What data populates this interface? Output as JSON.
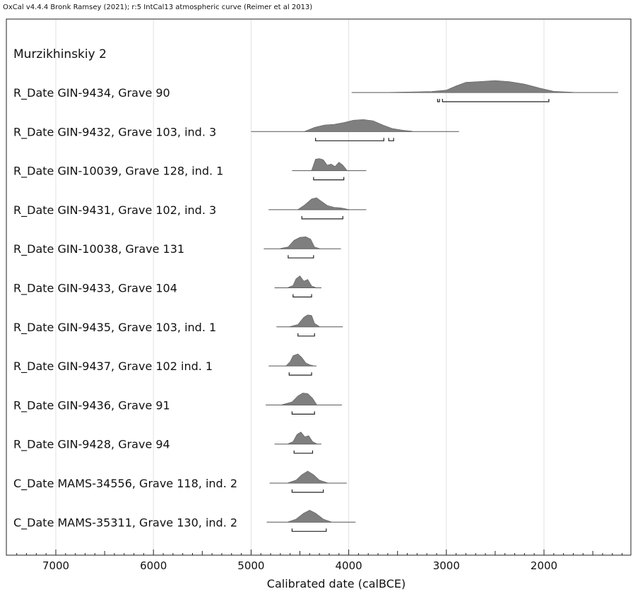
{
  "header": "OxCal v4.4.4 Bronk Ramsey (2021); r:5 IntCal13 atmospheric curve (Reimer et al 2013)",
  "chart_data": {
    "type": "ridgeline",
    "title": "Murzikhinskiy 2",
    "xlabel": "Calibrated date (calBCE)",
    "xlim": [
      7500,
      1200
    ],
    "xticks": [
      7000,
      6000,
      5000,
      4000,
      3000,
      2000
    ],
    "x_direction": "decreasing to the right (years BCE)",
    "grid": true,
    "series": [
      {
        "name": "R_Date GIN-9434, Grave 90",
        "range": [
          3970,
          1240
        ],
        "profile": [
          [
            3600,
            0.01
          ],
          [
            3350,
            0.05
          ],
          [
            3150,
            0.08
          ],
          [
            3000,
            0.2
          ],
          [
            2900,
            0.55
          ],
          [
            2800,
            0.85
          ],
          [
            2650,
            0.92
          ],
          [
            2500,
            1.0
          ],
          [
            2350,
            0.9
          ],
          [
            2200,
            0.7
          ],
          [
            2050,
            0.38
          ],
          [
            1900,
            0.1
          ],
          [
            1700,
            0.02
          ]
        ],
        "hpd": [
          [
            3090,
            3070
          ],
          [
            3040,
            1950
          ]
        ]
      },
      {
        "name": "R_Date GIN-9432, Grave 103, ind. 3",
        "range": [
          5000,
          2870
        ],
        "profile": [
          [
            4450,
            0.02
          ],
          [
            4350,
            0.35
          ],
          [
            4250,
            0.55
          ],
          [
            4150,
            0.6
          ],
          [
            4050,
            0.75
          ],
          [
            3950,
            0.95
          ],
          [
            3850,
            1.0
          ],
          [
            3750,
            0.9
          ],
          [
            3650,
            0.55
          ],
          [
            3550,
            0.25
          ],
          [
            3450,
            0.12
          ],
          [
            3350,
            0.03
          ]
        ],
        "hpd": [
          [
            4340,
            3640
          ],
          [
            3590,
            3540
          ]
        ]
      },
      {
        "name": "R_Date GIN-10039, Grave 128, ind. 1",
        "range": [
          4580,
          3820
        ],
        "profile": [
          [
            4380,
            0.02
          ],
          [
            4340,
            0.95
          ],
          [
            4300,
            1.0
          ],
          [
            4260,
            0.9
          ],
          [
            4220,
            0.45
          ],
          [
            4180,
            0.55
          ],
          [
            4140,
            0.35
          ],
          [
            4100,
            0.7
          ],
          [
            4060,
            0.45
          ],
          [
            4020,
            0.05
          ]
        ],
        "hpd": [
          [
            4360,
            4050
          ]
        ]
      },
      {
        "name": "R_Date GIN-9431, Grave 102, ind. 3",
        "range": [
          4820,
          3820
        ],
        "profile": [
          [
            4520,
            0.02
          ],
          [
            4450,
            0.4
          ],
          [
            4380,
            0.9
          ],
          [
            4330,
            1.0
          ],
          [
            4280,
            0.7
          ],
          [
            4220,
            0.35
          ],
          [
            4150,
            0.2
          ],
          [
            4080,
            0.15
          ],
          [
            4000,
            0.02
          ]
        ],
        "hpd": [
          [
            4480,
            4060
          ]
        ]
      },
      {
        "name": "R_Date GIN-10038, Grave 131",
        "range": [
          4870,
          4080
        ],
        "profile": [
          [
            4700,
            0.03
          ],
          [
            4620,
            0.15
          ],
          [
            4560,
            0.7
          ],
          [
            4500,
            0.95
          ],
          [
            4440,
            1.0
          ],
          [
            4390,
            0.8
          ],
          [
            4350,
            0.15
          ],
          [
            4300,
            0.02
          ]
        ],
        "hpd": [
          [
            4620,
            4360
          ]
        ]
      },
      {
        "name": "R_Date GIN-9433, Grave 104",
        "range": [
          4760,
          4280
        ],
        "profile": [
          [
            4620,
            0.03
          ],
          [
            4570,
            0.2
          ],
          [
            4540,
            0.75
          ],
          [
            4500,
            1.0
          ],
          [
            4460,
            0.55
          ],
          [
            4420,
            0.7
          ],
          [
            4380,
            0.15
          ],
          [
            4340,
            0.03
          ]
        ],
        "hpd": [
          [
            4570,
            4380
          ]
        ]
      },
      {
        "name": "R_Date GIN-9435, Grave 103, ind. 1",
        "range": [
          4740,
          4060
        ],
        "profile": [
          [
            4600,
            0.03
          ],
          [
            4520,
            0.2
          ],
          [
            4460,
            0.8
          ],
          [
            4420,
            1.0
          ],
          [
            4380,
            0.95
          ],
          [
            4350,
            0.3
          ],
          [
            4300,
            0.03
          ]
        ],
        "hpd": [
          [
            4520,
            4350
          ]
        ]
      },
      {
        "name": "R_Date GIN-9437, Grave 102 ind. 1",
        "range": [
          4820,
          4330
        ],
        "profile": [
          [
            4640,
            0.03
          ],
          [
            4600,
            0.35
          ],
          [
            4570,
            0.85
          ],
          [
            4520,
            1.0
          ],
          [
            4480,
            0.7
          ],
          [
            4440,
            0.25
          ],
          [
            4400,
            0.1
          ],
          [
            4360,
            0.02
          ]
        ],
        "hpd": [
          [
            4610,
            4380
          ]
        ]
      },
      {
        "name": "R_Date GIN-9436, Grave 91",
        "range": [
          4850,
          4070
        ],
        "profile": [
          [
            4680,
            0.03
          ],
          [
            4580,
            0.25
          ],
          [
            4520,
            0.75
          ],
          [
            4470,
            1.0
          ],
          [
            4420,
            0.95
          ],
          [
            4370,
            0.55
          ],
          [
            4330,
            0.05
          ]
        ],
        "hpd": [
          [
            4580,
            4350
          ]
        ]
      },
      {
        "name": "R_Date GIN-9428, Grave 94",
        "range": [
          4760,
          4280
        ],
        "profile": [
          [
            4620,
            0.03
          ],
          [
            4570,
            0.2
          ],
          [
            4530,
            0.8
          ],
          [
            4490,
            1.0
          ],
          [
            4450,
            0.6
          ],
          [
            4410,
            0.7
          ],
          [
            4370,
            0.2
          ],
          [
            4330,
            0.03
          ]
        ],
        "hpd": [
          [
            4560,
            4370
          ]
        ]
      },
      {
        "name": "C_Date MAMS-34556, Grave 118, ind. 2",
        "range": [
          4810,
          4020
        ],
        "profile": [
          [
            4620,
            0.03
          ],
          [
            4540,
            0.25
          ],
          [
            4480,
            0.7
          ],
          [
            4420,
            1.0
          ],
          [
            4360,
            0.7
          ],
          [
            4300,
            0.25
          ],
          [
            4220,
            0.03
          ]
        ],
        "hpd": [
          [
            4580,
            4260
          ]
        ]
      },
      {
        "name": "C_Date MAMS-35311, Grave 130, ind. 2",
        "range": [
          4840,
          3930
        ],
        "profile": [
          [
            4620,
            0.03
          ],
          [
            4540,
            0.25
          ],
          [
            4460,
            0.75
          ],
          [
            4400,
            1.0
          ],
          [
            4340,
            0.75
          ],
          [
            4260,
            0.25
          ],
          [
            4180,
            0.03
          ]
        ],
        "hpd": [
          [
            4580,
            4230
          ]
        ]
      }
    ]
  }
}
